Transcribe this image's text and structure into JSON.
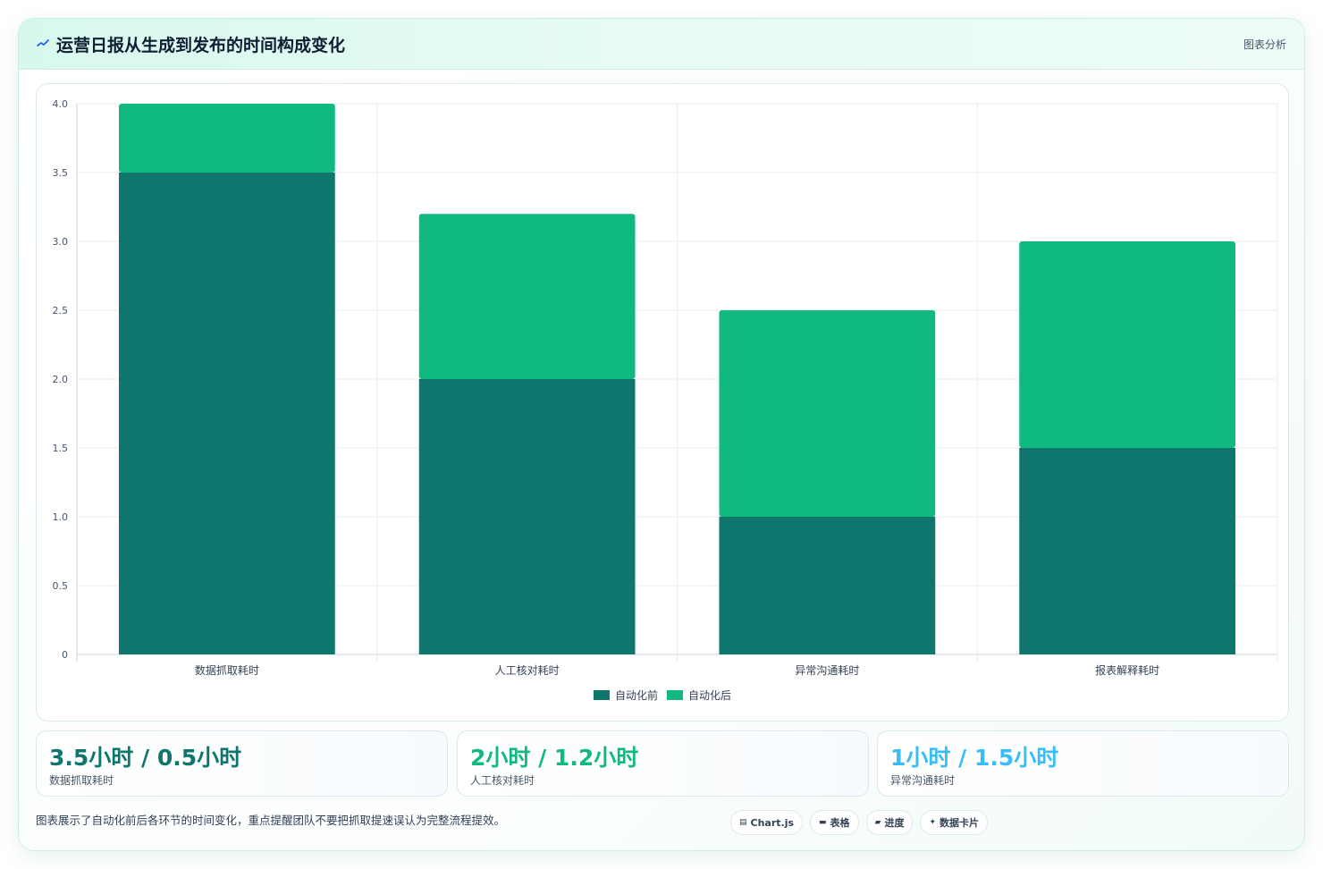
{
  "header": {
    "title": "运营日报从生成到发布的时间构成变化",
    "tag": "图表分析",
    "icon": "wave-icon"
  },
  "colors": {
    "before": "#0f766e",
    "after": "#10b981",
    "stat1": "#0f766e",
    "stat2": "#10b981",
    "stat3": "#38bdf8"
  },
  "chart_data": {
    "type": "bar",
    "stacked": true,
    "categories": [
      "数据抓取耗时",
      "人工核对耗时",
      "异常沟通耗时",
      "报表解释耗时"
    ],
    "series": [
      {
        "name": "自动化前",
        "values": [
          3.5,
          2.0,
          1.0,
          1.5
        ]
      },
      {
        "name": "自动化后",
        "values": [
          0.5,
          1.2,
          1.5,
          1.5
        ]
      }
    ],
    "ylim": [
      0,
      4
    ],
    "yticks": [
      "0",
      "0.5",
      "1.0",
      "1.5",
      "2.0",
      "2.5",
      "3.0",
      "3.5",
      "4.0"
    ],
    "grid": true,
    "legend_position": "bottom"
  },
  "stats": [
    {
      "value": "3.5小时 / 0.5小时",
      "label": "数据抓取耗时"
    },
    {
      "value": "2小时 / 1.2小时",
      "label": "人工核对耗时"
    },
    {
      "value": "1小时 / 1.5小时",
      "label": "异常沟通耗时"
    }
  ],
  "footnote": "图表展示了自动化前后各环节的时间变化，重点提醒团队不要把抓取提速误认为完整流程提效。",
  "pills": [
    {
      "icon": "chart-icon",
      "label": "Chart.js"
    },
    {
      "icon": "table-icon",
      "label": "表格"
    },
    {
      "icon": "progress-icon",
      "label": "进度"
    },
    {
      "icon": "sparkle-icon",
      "label": "数据卡片"
    }
  ]
}
